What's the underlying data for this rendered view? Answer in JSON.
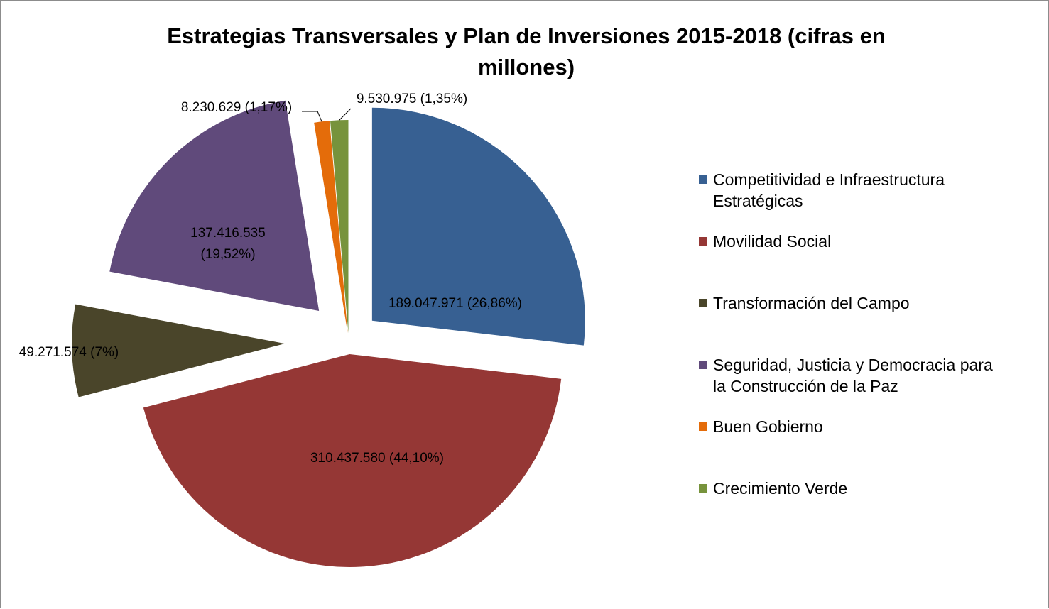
{
  "chart_data": {
    "type": "pie",
    "title": "Estrategias Transversales y Plan de Inversiones 2015-2018 (cifras en millones)",
    "slices": [
      {
        "name": "Competitividad e Infraestructura Estratégicas",
        "value": 189047971,
        "percent": 26.86,
        "label": "189.047.971 (26,86%)",
        "color": "#376092"
      },
      {
        "name": "Movilidad Social",
        "value": 310437580,
        "percent": 44.1,
        "label": "310.437.580 (44,10%)",
        "color": "#953735"
      },
      {
        "name": "Transformación del Campo",
        "value": 49271574,
        "percent": 7.0,
        "label": "49.271.574 (7%)",
        "color": "#4a452a"
      },
      {
        "name": "Seguridad, Justicia y Democracia para la Construcción de la Paz",
        "value": 137416535,
        "percent": 19.52,
        "label": "137.416.535 (19,52%)",
        "color": "#604a7b"
      },
      {
        "name": "Buen Gobierno",
        "value": 8230629,
        "percent": 1.17,
        "label": "8.230.629 (1,17%)",
        "color": "#e46c0a"
      },
      {
        "name": "Crecimiento Verde",
        "value": 9530975,
        "percent": 1.35,
        "label": "9.530.975 (1,35%)",
        "color": "#77933c"
      }
    ],
    "legend_position": "right",
    "exploded": true
  }
}
